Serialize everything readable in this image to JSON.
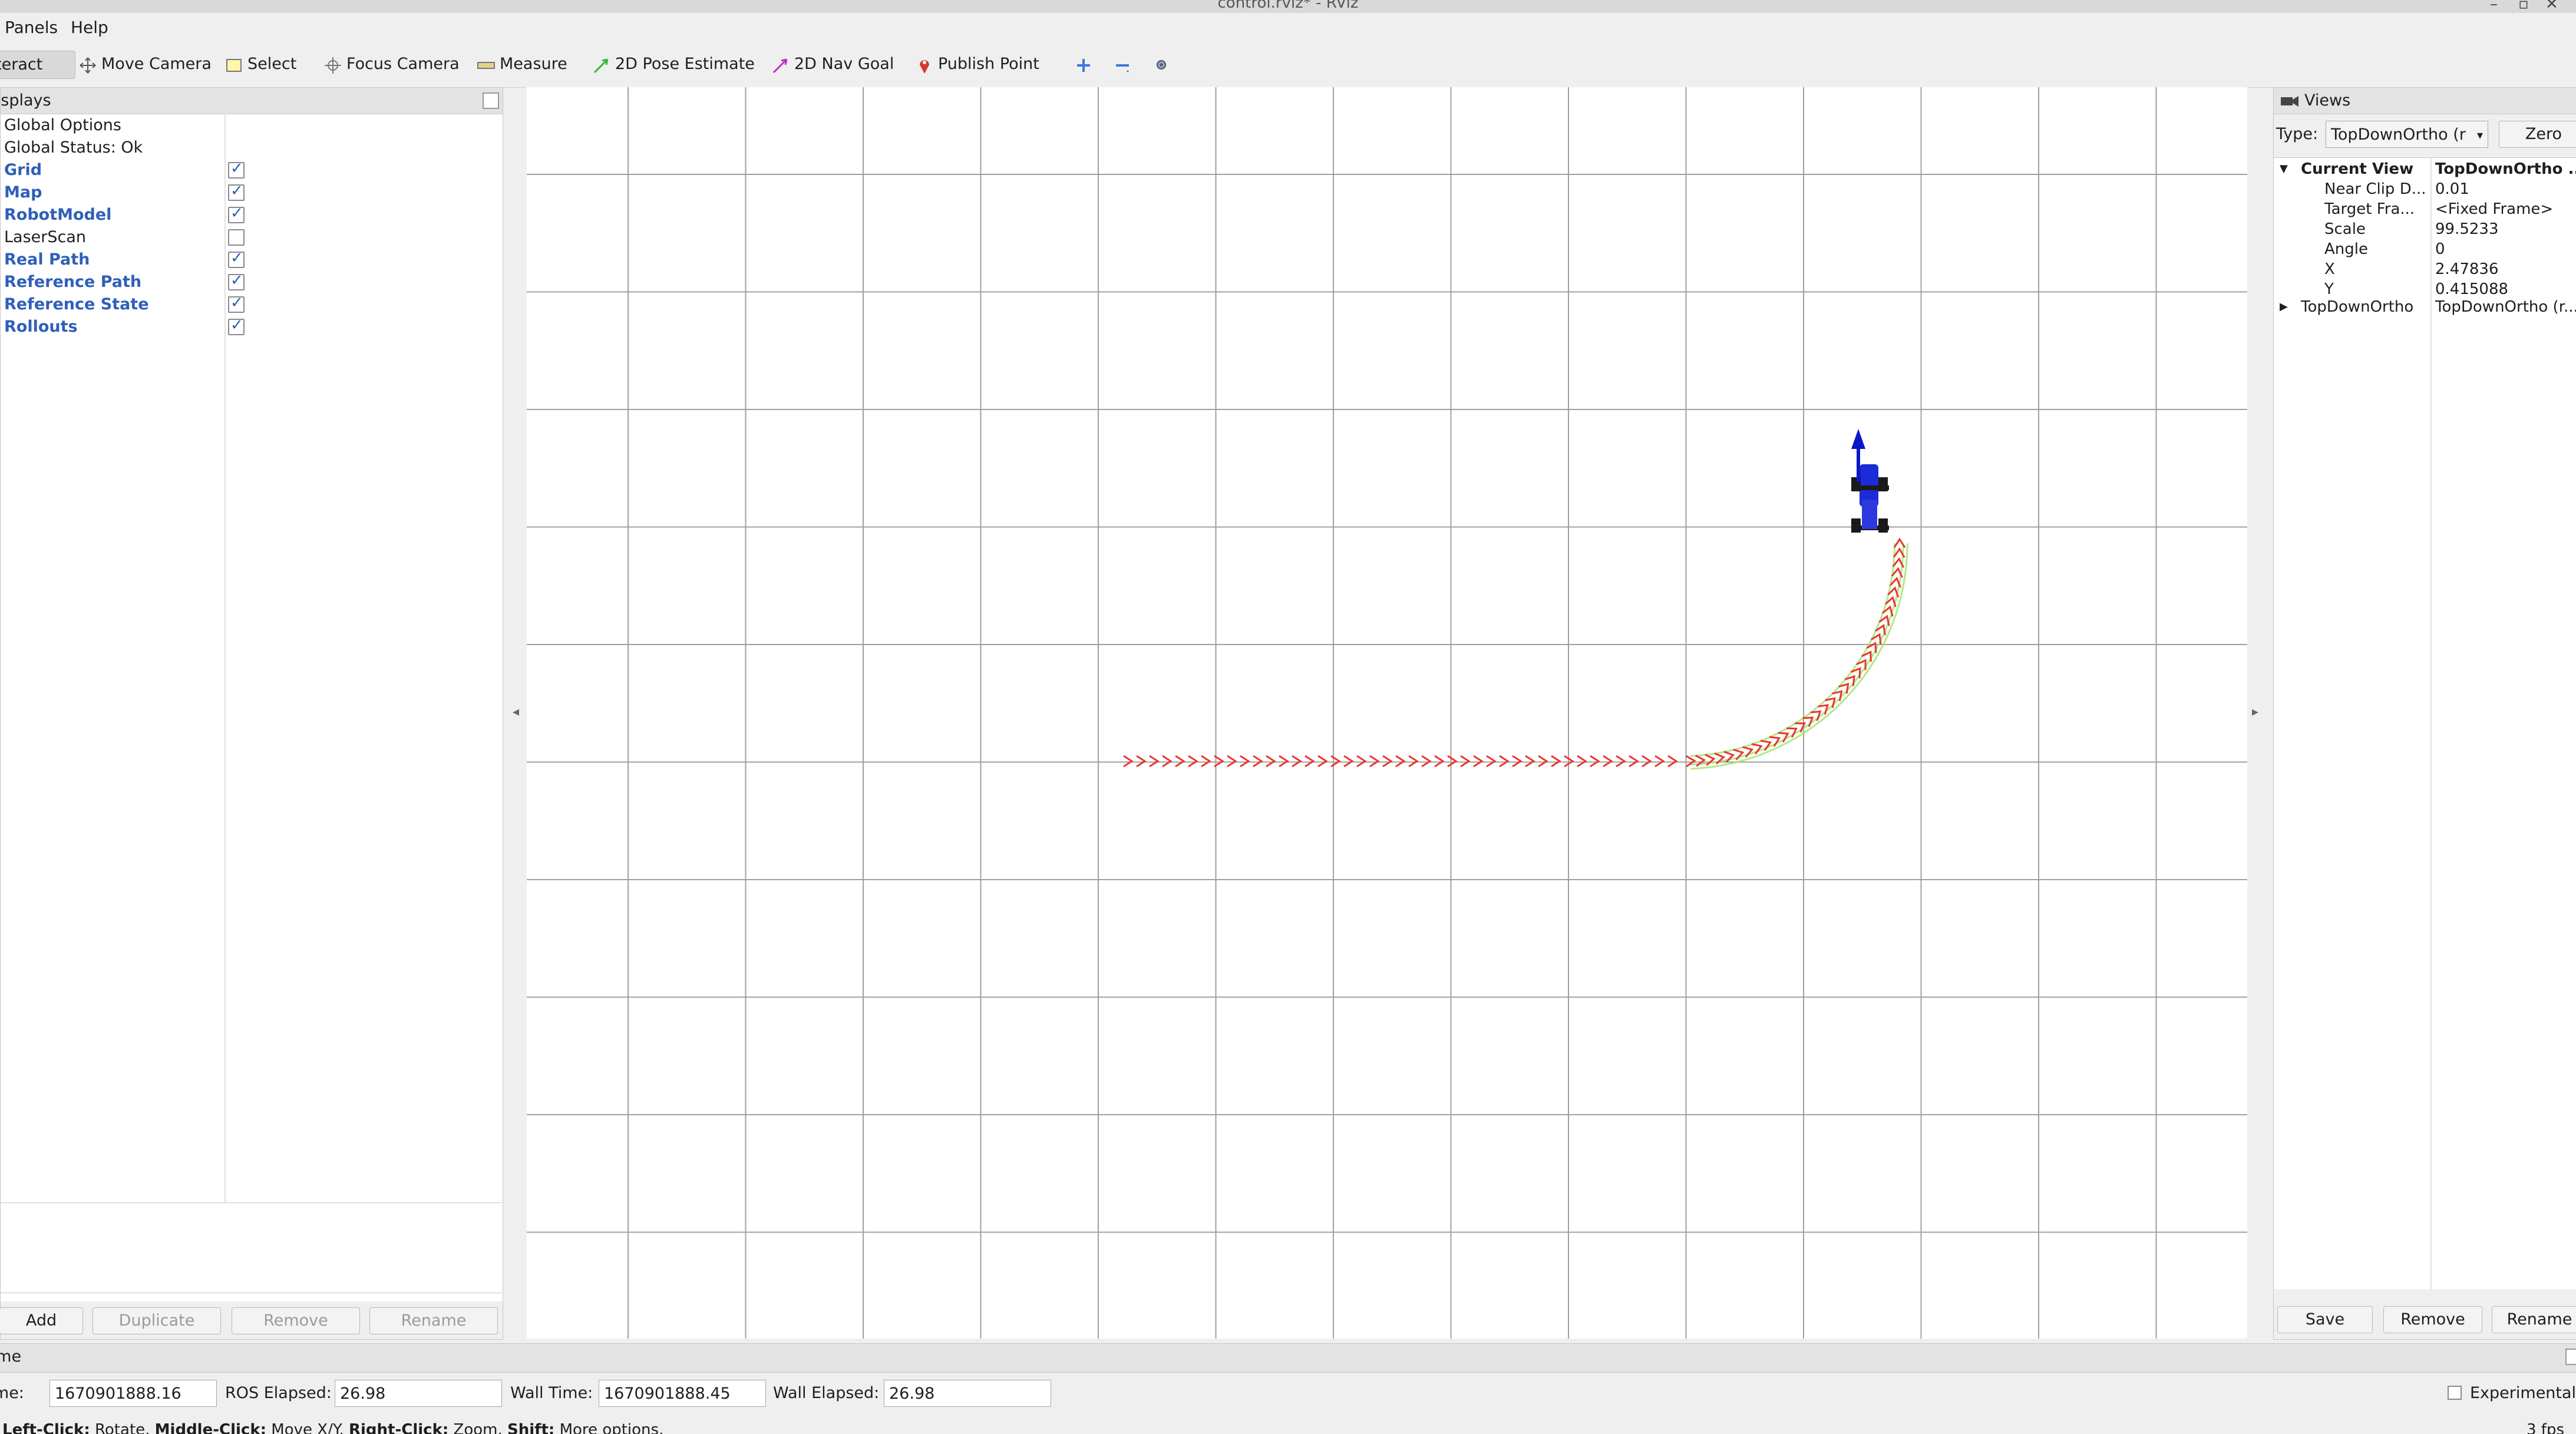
{
  "window": {
    "title": "control.rviz* - RViz"
  },
  "menu": {
    "panels": "Panels",
    "help": "Help"
  },
  "toolbar": {
    "interact": "Interact",
    "move_camera": "Move Camera",
    "select": "Select",
    "focus_camera": "Focus Camera",
    "measure": "Measure",
    "pose_estimate": "2D Pose Estimate",
    "nav_goal": "2D Nav Goal",
    "publish_point": "Publish Point"
  },
  "displays": {
    "title": "Displays",
    "global_options": "Global Options",
    "global_status": "Global Status: Ok",
    "items": [
      {
        "label": "Grid",
        "checked": true
      },
      {
        "label": "Map",
        "checked": true
      },
      {
        "label": "RobotModel",
        "checked": true
      },
      {
        "label": "LaserScan",
        "checked": false
      },
      {
        "label": "Real Path",
        "checked": true
      },
      {
        "label": "Reference Path",
        "checked": true
      },
      {
        "label": "Reference State",
        "checked": true
      },
      {
        "label": "Rollouts",
        "checked": true
      }
    ],
    "buttons": {
      "add": "Add",
      "duplicate": "Duplicate",
      "remove": "Remove",
      "rename": "Rename"
    }
  },
  "views": {
    "title": "Views",
    "type_label": "Type:",
    "type_value": "TopDownOrtho (r",
    "zero": "Zero",
    "current_view": {
      "label": "Current View",
      "value": "TopDownOrtho ..."
    },
    "props": [
      {
        "name": "Near Clip D...",
        "value": "0.01"
      },
      {
        "name": "Target Fra...",
        "value": "<Fixed Frame>"
      },
      {
        "name": "Scale",
        "value": "99.5233"
      },
      {
        "name": "Angle",
        "value": "0"
      },
      {
        "name": "X",
        "value": "2.47836"
      },
      {
        "name": "Y",
        "value": "0.415088"
      }
    ],
    "saved": {
      "name": "TopDownOrtho",
      "value": "TopDownOrtho (r..."
    },
    "buttons": {
      "save": "Save",
      "remove": "Remove",
      "rename": "Rename"
    }
  },
  "time": {
    "title": "Time",
    "ros_time_label": "ROS Time:",
    "ros_time": "1670901888.16",
    "ros_elapsed_label": "ROS Elapsed:",
    "ros_elapsed": "26.98",
    "wall_time_label": "Wall Time:",
    "wall_time": "1670901888.45",
    "wall_elapsed_label": "Wall Elapsed:",
    "wall_elapsed": "26.98",
    "experimental": "Experimental"
  },
  "status": {
    "left_click": "Left-Click:",
    "left_click_action": "Rotate.",
    "middle_click": "Middle-Click:",
    "middle_click_action": "Move X/Y.",
    "right_click": "Right-Click:",
    "right_click_action": "Zoom.",
    "shift": "Shift:",
    "shift_action": "More options.",
    "fps": "3 fps"
  },
  "colors": {
    "grid_line": "#a0a0a0",
    "path": "#e8372f",
    "reference": "#9be36a",
    "robot_body": "#1b2bd6",
    "arrow": "#0a18c8"
  }
}
